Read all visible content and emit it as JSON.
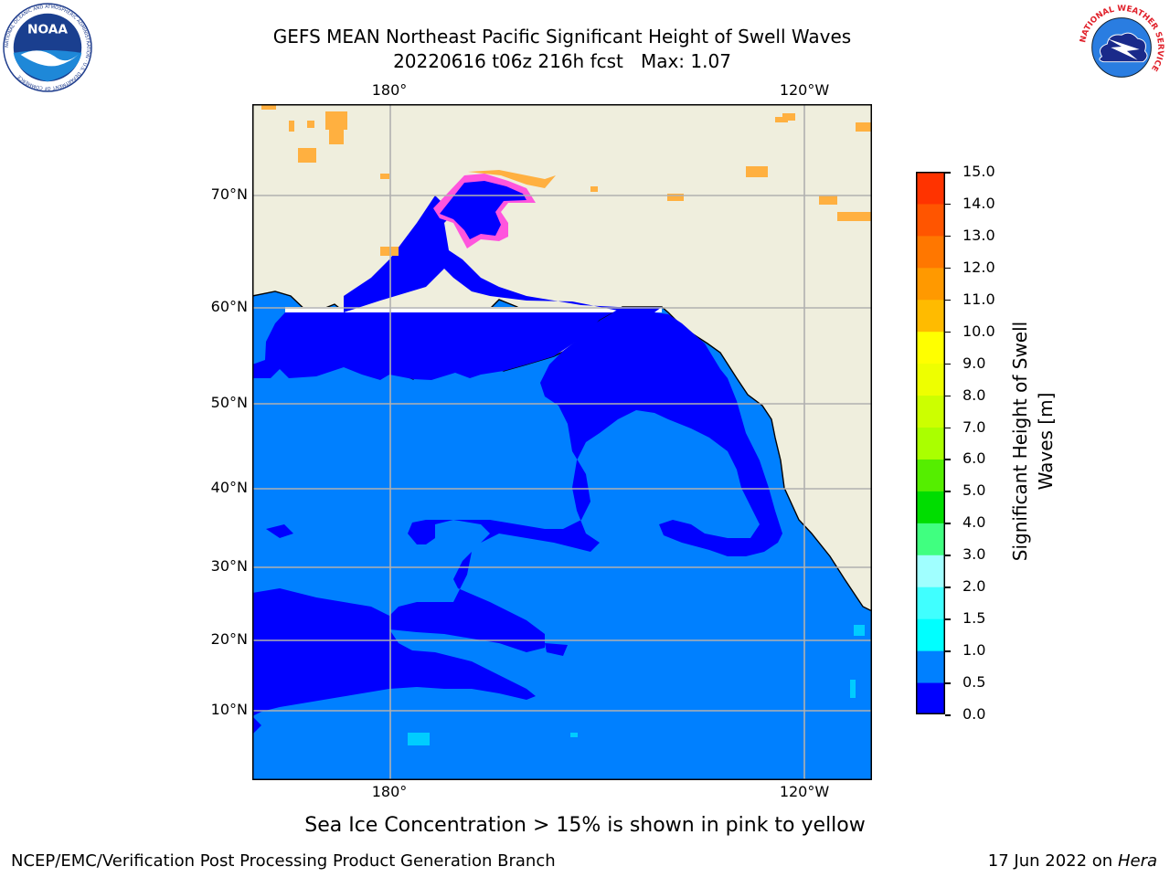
{
  "header": {
    "title": "GEFS MEAN Northeast Pacific Significant Height of Swell Waves",
    "run": "20220616 t06z 216h fcst",
    "max_label": "Max: 1.07"
  },
  "logos": {
    "noaa_text": "NOAA",
    "noaa_ring": "NATIONAL OCEANIC AND ATMOSPHERIC ADMINISTRATION · U.S. DEPARTMENT OF COMMERCE",
    "nws_ring": "NATIONAL WEATHER SERVICE"
  },
  "map": {
    "lat_labels": [
      "70°N",
      "60°N",
      "50°N",
      "40°N",
      "30°N",
      "20°N",
      "10°N"
    ],
    "lon_labels_top": [
      "180°",
      "120°W"
    ],
    "lon_labels_bottom": [
      "180°",
      "120°W"
    ],
    "colors": {
      "land": "#efeedd",
      "ocean_base": "#0080ff",
      "ocean_low": "#0000ff",
      "grid": "#b0b0b0",
      "coast": "#000000",
      "ice_pink": "#ff55dd",
      "ice_orange": "#ffb040"
    }
  },
  "colorbar": {
    "label_line1": "Significant Height of Swell",
    "label_line2": "Waves [m]",
    "ticks": [
      "15.0",
      "14.0",
      "13.0",
      "12.0",
      "11.0",
      "10.0",
      "9.0",
      "8.0",
      "7.0",
      "6.0",
      "5.0",
      "4.0",
      "3.0",
      "2.0",
      "1.5",
      "1.0",
      "0.5",
      "0.0"
    ],
    "colors_bottom_to_top": [
      "#0000ff",
      "#0080ff",
      "#00ffff",
      "#40ffff",
      "#a0ffff",
      "#40ff80",
      "#00dd00",
      "#55ee00",
      "#aaff00",
      "#ccff00",
      "#eeff00",
      "#ffff00",
      "#ffbb00",
      "#ff9900",
      "#ff7700",
      "#ff5500",
      "#ff3300"
    ]
  },
  "notes": {
    "sea_ice": "Sea Ice Concentration > 15% is shown in pink to yellow"
  },
  "footer": {
    "left": "NCEP/EMC/Verification Post Processing Product Generation Branch",
    "right_date": "17 Jun 2022 on",
    "right_host": "Hera"
  }
}
